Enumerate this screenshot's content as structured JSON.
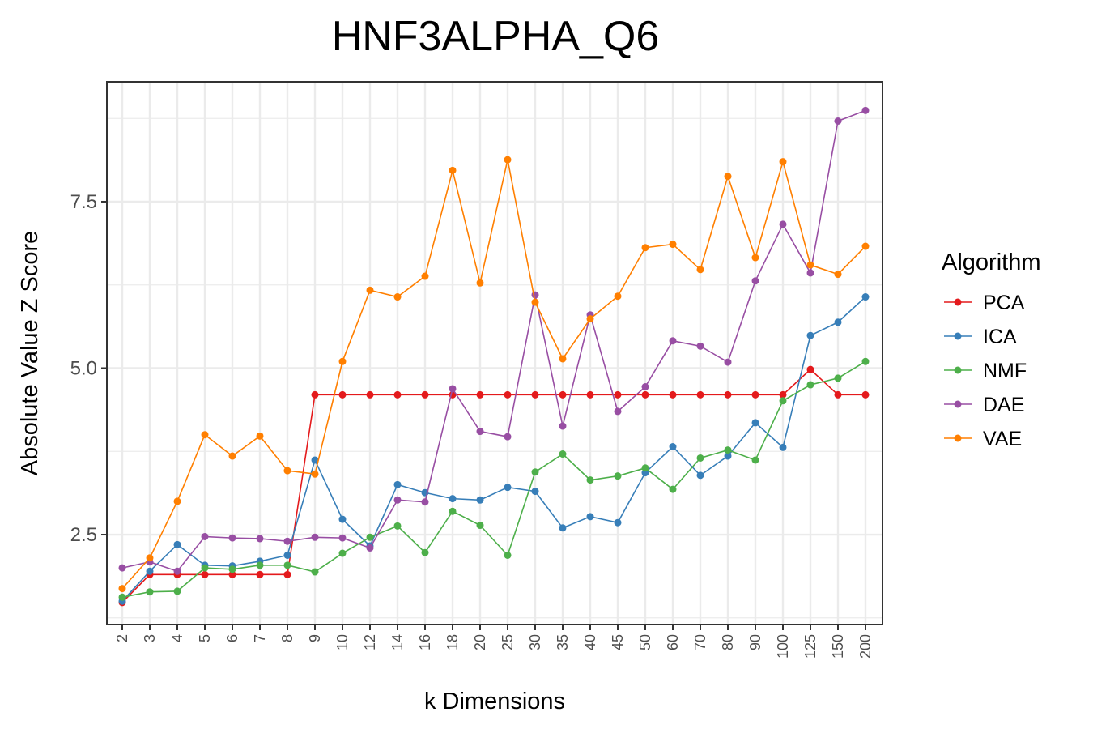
{
  "chart_data": {
    "type": "line",
    "title": "HNF3ALPHA_Q6",
    "xlabel": "k Dimensions",
    "ylabel": "Absolute Value Z Score",
    "categories": [
      "2",
      "3",
      "4",
      "5",
      "6",
      "7",
      "8",
      "9",
      "10",
      "12",
      "14",
      "16",
      "18",
      "20",
      "25",
      "30",
      "35",
      "40",
      "45",
      "50",
      "60",
      "70",
      "80",
      "90",
      "100",
      "125",
      "150",
      "200"
    ],
    "ylim": [
      1.15,
      9.3
    ],
    "yticks": [
      2.5,
      5.0,
      7.5
    ],
    "ytick_labels": [
      "2.5",
      "5.0",
      "7.5"
    ],
    "grid": true,
    "legend": {
      "title": "Algorithm",
      "position": "right"
    },
    "series": [
      {
        "name": "PCA",
        "color": "#e41a1c",
        "values": [
          1.48,
          1.9,
          1.9,
          1.9,
          1.9,
          1.9,
          1.9,
          4.6,
          4.6,
          4.6,
          4.6,
          4.6,
          4.6,
          4.6,
          4.6,
          4.6,
          4.6,
          4.6,
          4.6,
          4.6,
          4.6,
          4.6,
          4.6,
          4.6,
          4.6,
          4.98,
          4.6,
          4.6
        ]
      },
      {
        "name": "ICA",
        "color": "#377eb8",
        "values": [
          1.5,
          1.95,
          2.35,
          2.04,
          2.03,
          2.1,
          2.19,
          3.62,
          2.73,
          2.33,
          3.25,
          3.13,
          3.04,
          3.02,
          3.21,
          3.15,
          2.6,
          2.77,
          2.68,
          3.43,
          3.82,
          3.39,
          3.68,
          4.18,
          3.81,
          5.49,
          5.69,
          6.07
        ]
      },
      {
        "name": "NMF",
        "color": "#4daf4a",
        "values": [
          1.56,
          1.64,
          1.65,
          2.0,
          1.98,
          2.04,
          2.04,
          1.94,
          2.22,
          2.46,
          2.63,
          2.23,
          2.85,
          2.64,
          2.19,
          3.44,
          3.71,
          3.32,
          3.38,
          3.5,
          3.18,
          3.65,
          3.77,
          3.62,
          4.51,
          4.75,
          4.85,
          5.1
        ]
      },
      {
        "name": "DAE",
        "color": "#984ea3",
        "values": [
          2.0,
          2.09,
          1.95,
          2.47,
          2.45,
          2.44,
          2.4,
          2.46,
          2.45,
          2.3,
          3.02,
          2.99,
          4.69,
          4.05,
          3.97,
          6.1,
          4.13,
          5.8,
          4.35,
          4.72,
          5.41,
          5.33,
          5.09,
          6.31,
          7.16,
          6.43,
          8.71,
          8.87
        ]
      },
      {
        "name": "VAE",
        "color": "#ff7f00",
        "values": [
          1.69,
          2.15,
          3.0,
          4.0,
          3.68,
          3.98,
          3.46,
          3.41,
          5.1,
          6.17,
          6.07,
          6.38,
          7.97,
          6.28,
          8.13,
          5.99,
          5.14,
          5.74,
          6.08,
          6.81,
          6.86,
          6.48,
          7.88,
          6.66,
          8.1,
          6.55,
          6.41,
          6.83
        ]
      }
    ]
  }
}
